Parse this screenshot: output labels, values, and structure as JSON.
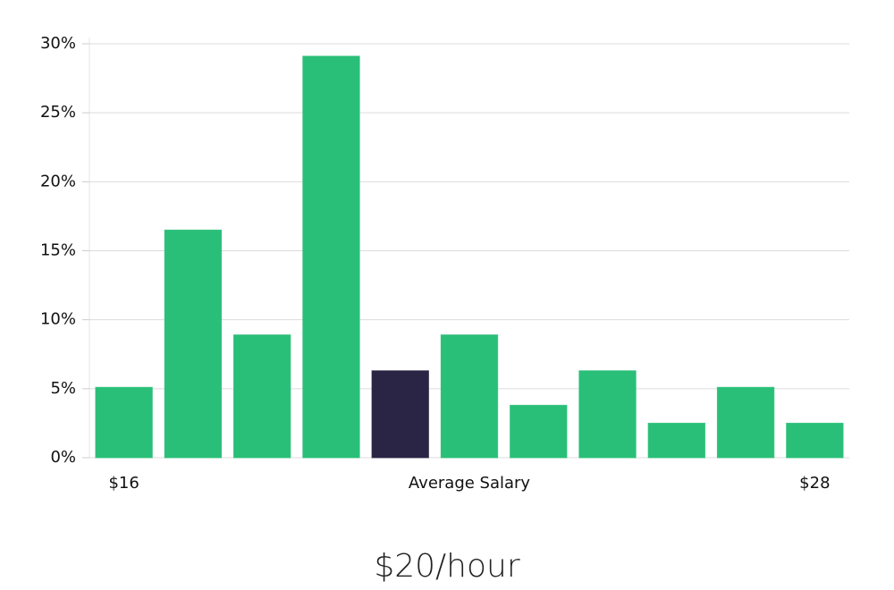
{
  "chart_data": {
    "type": "bar",
    "categories": [
      "$16",
      null,
      null,
      null,
      null,
      null,
      null,
      null,
      null,
      null,
      "$28"
    ],
    "values": [
      5.1,
      16.5,
      8.9,
      29.1,
      6.3,
      8.9,
      3.8,
      6.3,
      2.5,
      5.1,
      2.5
    ],
    "colors": [
      "#2abf78",
      "#2abf78",
      "#2abf78",
      "#2abf78",
      "#2a2545",
      "#2abf78",
      "#2abf78",
      "#2abf78",
      "#2abf78",
      "#2abf78",
      "#2abf78"
    ],
    "x_label": "Average Salary",
    "annotation": "$20/hour",
    "ylim": [
      0,
      30
    ],
    "yticks": [
      {
        "value": 0,
        "label": "0%"
      },
      {
        "value": 5,
        "label": "5%"
      },
      {
        "value": 10,
        "label": "10%"
      },
      {
        "value": 15,
        "label": "15%"
      },
      {
        "value": 20,
        "label": "20%"
      },
      {
        "value": 25,
        "label": "25%"
      },
      {
        "value": 30,
        "label": "30%"
      }
    ],
    "grid": true
  }
}
